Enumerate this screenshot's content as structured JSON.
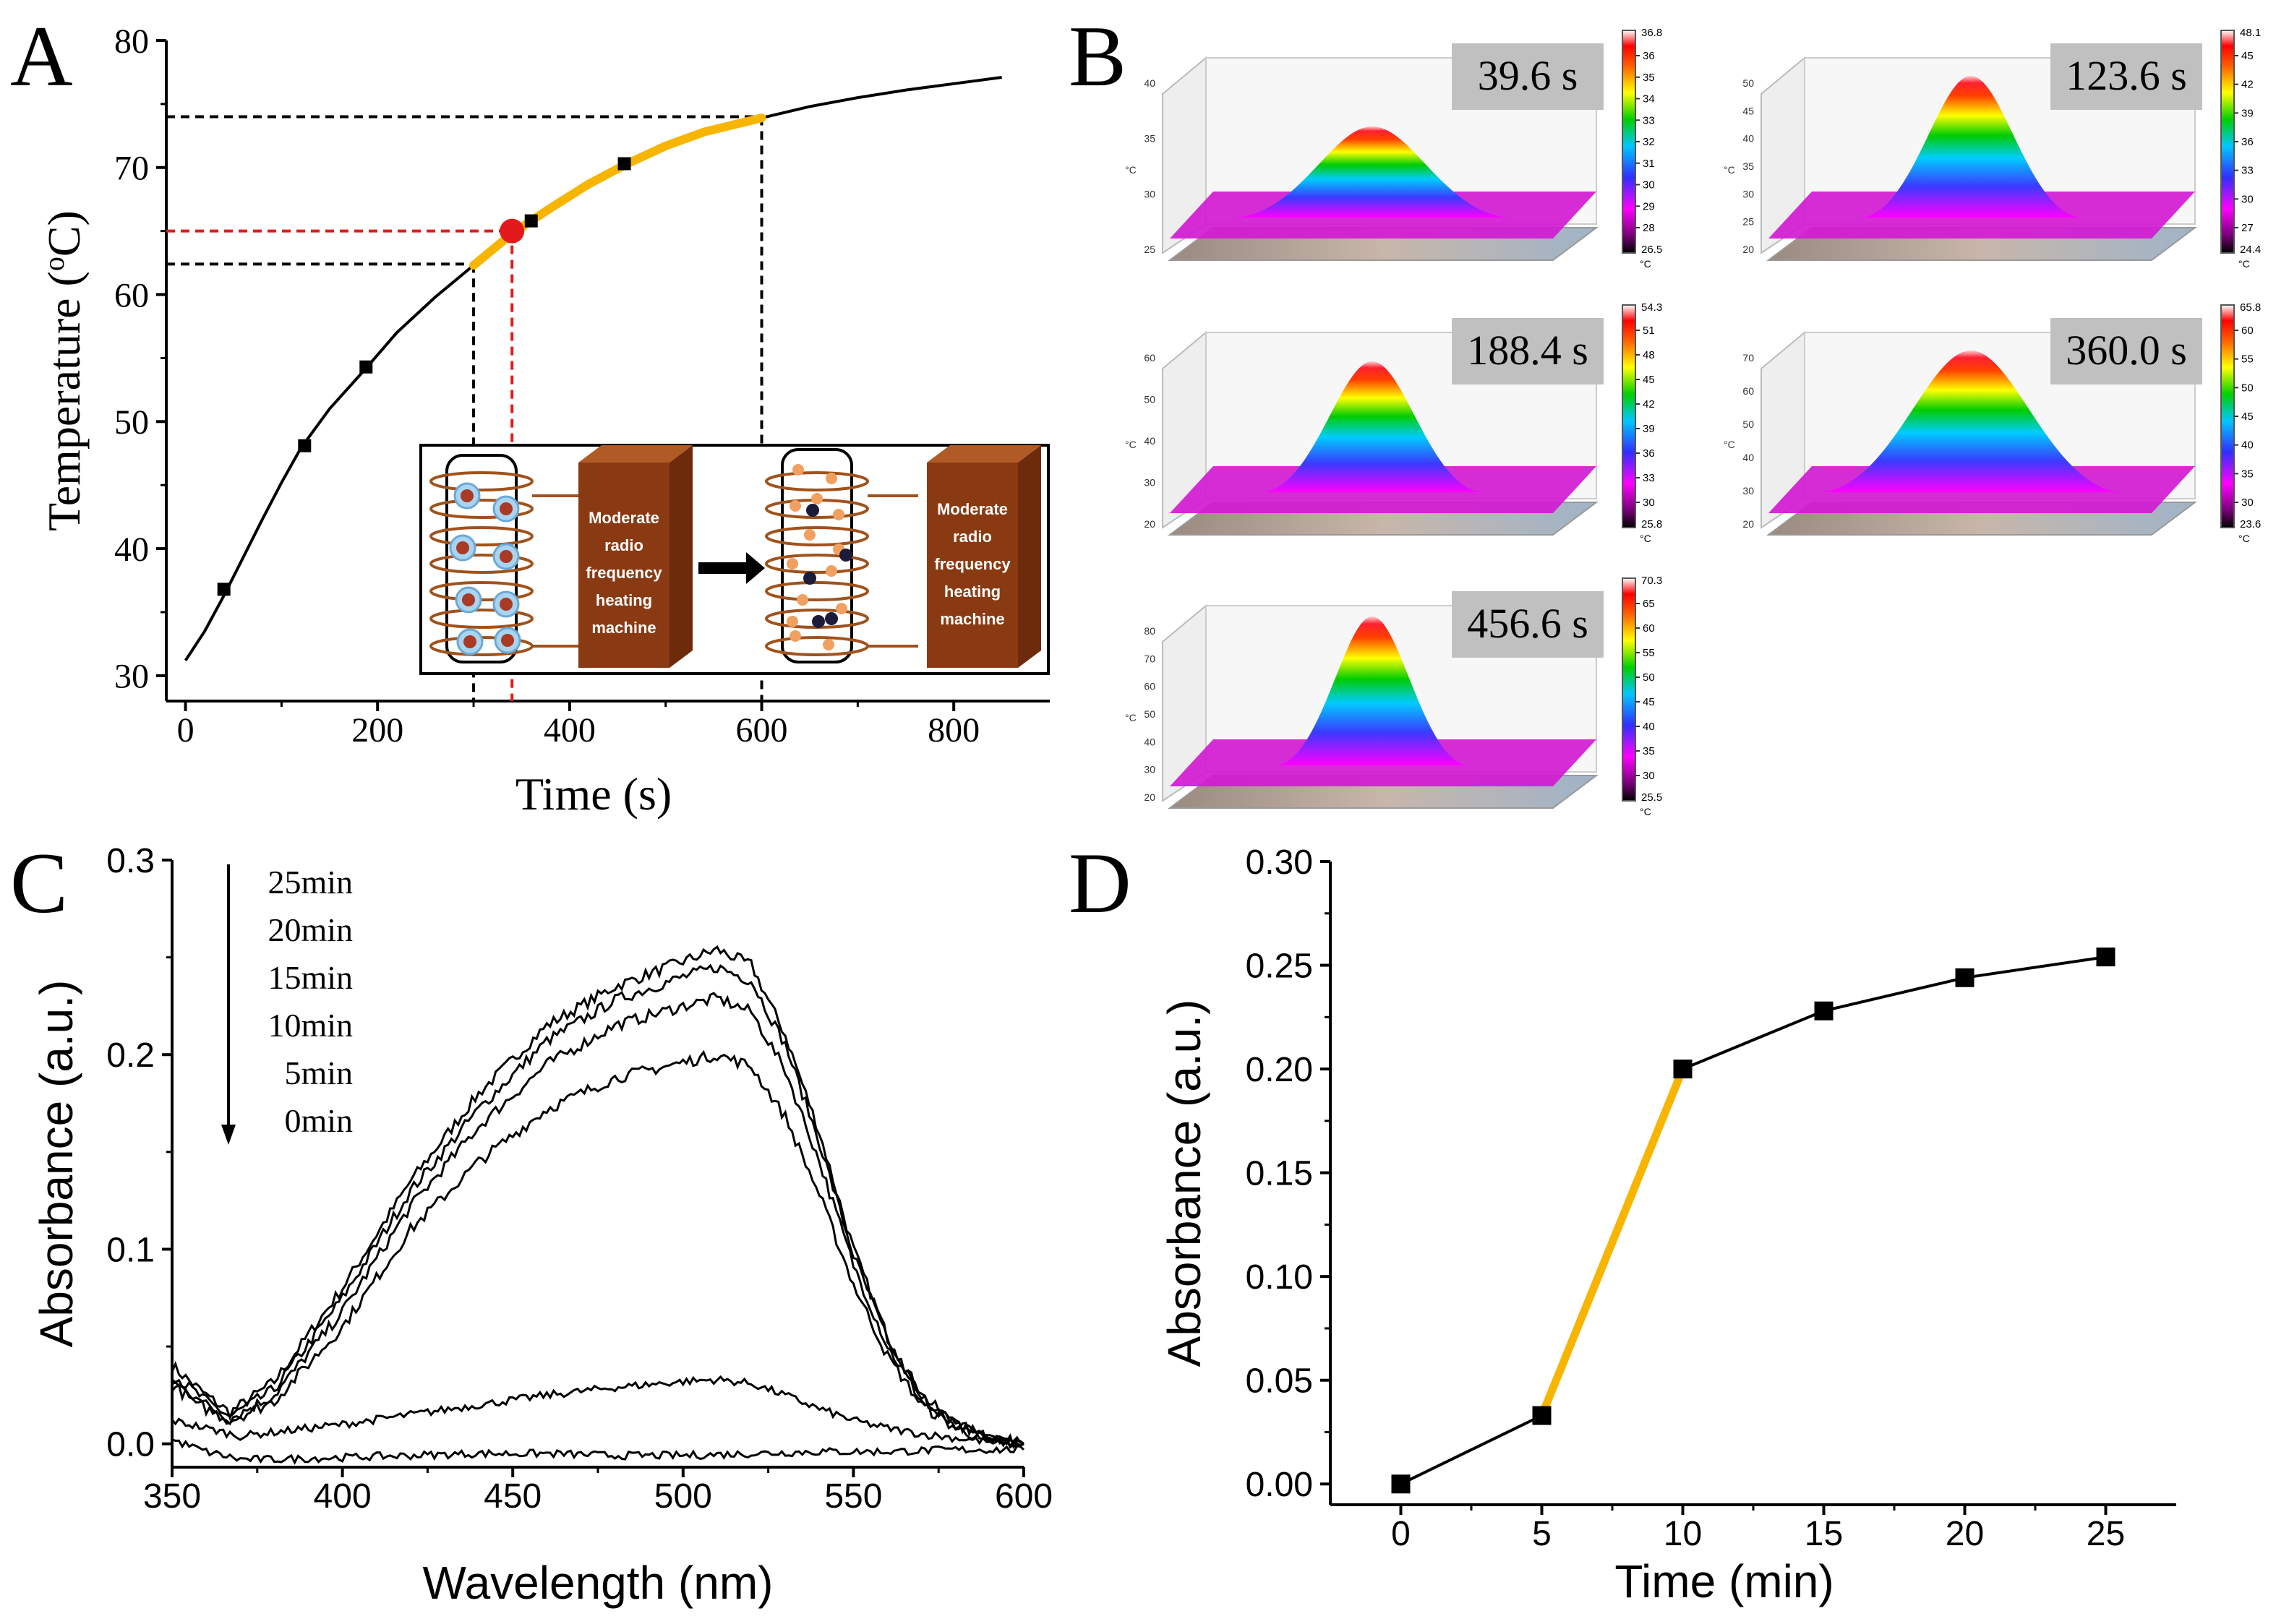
{
  "panel_labels": {
    "a": "A",
    "b": "B",
    "c": "C",
    "d": "D"
  },
  "inset": {
    "machine_label": [
      "Moderate",
      "radio",
      "frequency",
      "heating",
      "machine"
    ]
  },
  "colors": {
    "highlight": "#f7b500",
    "marker": "#e31a1c",
    "guide": "#e31a1c",
    "machine": "#8a3a12",
    "coil": "#a0521c"
  },
  "chart_data": [
    {
      "id": "A",
      "type": "line",
      "xlabel": "Time (s)",
      "ylabel_main": "Temperature (",
      "ylabel_sup": "o",
      "ylabel_end": "C)",
      "xlim": [
        -20,
        900
      ],
      "ylim": [
        28,
        80
      ],
      "xticks": [
        "0",
        "200",
        "400",
        "600",
        "800"
      ],
      "xtick_values": [
        0,
        200,
        400,
        600,
        800
      ],
      "yticks": [
        "30",
        "40",
        "50",
        "60",
        "70",
        "80"
      ],
      "ytick_values": [
        30,
        40,
        50,
        60,
        70,
        80
      ],
      "curve_x": [
        0,
        20,
        40,
        60,
        80,
        100,
        120,
        150,
        188,
        220,
        260,
        300,
        340,
        380,
        420,
        460,
        500,
        540,
        600,
        650,
        700,
        750,
        800,
        850
      ],
      "curve_y": [
        31.2,
        33.5,
        36.3,
        39.3,
        42.3,
        45.2,
        47.9,
        51.0,
        54.2,
        57.0,
        59.8,
        62.3,
        64.8,
        66.8,
        68.7,
        70.3,
        71.7,
        72.8,
        73.9,
        74.8,
        75.5,
        76.1,
        76.6,
        77.1
      ],
      "markers": {
        "x": [
          40,
          124,
          188,
          360,
          457
        ],
        "y": [
          36.8,
          48.1,
          54.3,
          65.8,
          70.3
        ]
      },
      "highlight_range": [
        300,
        600
      ],
      "guides": {
        "x_start": 300,
        "y_start": 62.4,
        "x_end": 600,
        "y_end": 74.0,
        "x_mid": 340,
        "y_mid": 65.0
      }
    },
    {
      "id": "B",
      "type": "heatmap",
      "unit": "°C",
      "maps": [
        {
          "time_label": "39.6 s",
          "scale_max": "36.8",
          "scale_min": "26.5",
          "scale_ticks": [
            "36",
            "35",
            "34",
            "33",
            "32",
            "31",
            "30",
            "29",
            "28"
          ],
          "axis_ticks": [
            "40",
            "35",
            "30",
            "25"
          ]
        },
        {
          "time_label": "123.6 s",
          "scale_max": "48.1",
          "scale_min": "24.4",
          "scale_ticks": [
            "45",
            "42",
            "39",
            "36",
            "33",
            "30",
            "27"
          ],
          "axis_ticks": [
            "50",
            "45",
            "40",
            "35",
            "30",
            "25",
            "20"
          ]
        },
        {
          "time_label": "188.4 s",
          "scale_max": "54.3",
          "scale_min": "25.8",
          "scale_ticks": [
            "51",
            "48",
            "45",
            "42",
            "39",
            "36",
            "33",
            "30"
          ],
          "axis_ticks": [
            "60",
            "50",
            "40",
            "30",
            "20"
          ]
        },
        {
          "time_label": "360.0 s",
          "scale_max": "65.8",
          "scale_min": "23.6",
          "scale_ticks": [
            "60",
            "55",
            "50",
            "45",
            "40",
            "35",
            "30"
          ],
          "axis_ticks": [
            "70",
            "60",
            "50",
            "40",
            "30",
            "20"
          ]
        },
        {
          "time_label": "456.6 s",
          "scale_max": "70.3",
          "scale_min": "25.5",
          "scale_ticks": [
            "65",
            "60",
            "55",
            "50",
            "45",
            "40",
            "35",
            "30"
          ],
          "axis_ticks": [
            "80",
            "70",
            "60",
            "50",
            "40",
            "30",
            "20"
          ]
        }
      ]
    },
    {
      "id": "C",
      "type": "line",
      "xlabel": "Wavelength (nm)",
      "ylabel": "Absorbance (a.u.)",
      "xlim": [
        350,
        600
      ],
      "ylim": [
        -0.012,
        0.3
      ],
      "xticks": [
        "350",
        "400",
        "450",
        "500",
        "550",
        "600"
      ],
      "xtick_values": [
        350,
        400,
        450,
        500,
        550,
        600
      ],
      "yticks": [
        "0.0",
        "0.1",
        "0.2",
        "0.3"
      ],
      "ytick_values": [
        0,
        0.1,
        0.2,
        0.3
      ],
      "legend": [
        "25min",
        "20min",
        "15min",
        "10min",
        "5min",
        "0min"
      ],
      "series": [
        {
          "name": "25min",
          "x": [
            350,
            360,
            367,
            380,
            400,
            420,
            440,
            460,
            480,
            500,
            510,
            520,
            530,
            540,
            550,
            560,
            570,
            580,
            590,
            600
          ],
          "y": [
            0.04,
            0.025,
            0.016,
            0.032,
            0.08,
            0.135,
            0.18,
            0.215,
            0.235,
            0.248,
            0.254,
            0.246,
            0.21,
            0.16,
            0.1,
            0.055,
            0.025,
            0.01,
            0.003,
            0.0
          ]
        },
        {
          "name": "20min",
          "x": [
            350,
            360,
            367,
            380,
            400,
            420,
            440,
            460,
            480,
            500,
            510,
            520,
            530,
            540,
            550,
            560,
            570,
            580,
            590,
            600
          ],
          "y": [
            0.036,
            0.022,
            0.014,
            0.028,
            0.075,
            0.13,
            0.172,
            0.207,
            0.228,
            0.24,
            0.245,
            0.238,
            0.205,
            0.155,
            0.097,
            0.053,
            0.024,
            0.01,
            0.003,
            0.0
          ]
        },
        {
          "name": "15min",
          "x": [
            350,
            360,
            367,
            380,
            400,
            420,
            440,
            460,
            480,
            500,
            510,
            520,
            530,
            540,
            550,
            560,
            570,
            580,
            590,
            600
          ],
          "y": [
            0.032,
            0.02,
            0.013,
            0.025,
            0.068,
            0.122,
            0.163,
            0.195,
            0.215,
            0.225,
            0.229,
            0.222,
            0.192,
            0.145,
            0.092,
            0.05,
            0.022,
            0.009,
            0.003,
            0.0
          ]
        },
        {
          "name": "10min",
          "x": [
            350,
            360,
            367,
            380,
            400,
            420,
            440,
            460,
            480,
            500,
            510,
            520,
            530,
            540,
            550,
            560,
            570,
            580,
            590,
            600
          ],
          "y": [
            0.03,
            0.018,
            0.012,
            0.022,
            0.06,
            0.11,
            0.145,
            0.172,
            0.188,
            0.196,
            0.2,
            0.194,
            0.168,
            0.128,
            0.082,
            0.045,
            0.02,
            0.008,
            0.002,
            0.0
          ]
        },
        {
          "name": "5min",
          "x": [
            350,
            360,
            370,
            380,
            400,
            420,
            440,
            460,
            480,
            500,
            510,
            520,
            530,
            540,
            550,
            560,
            570,
            580,
            590,
            600
          ],
          "y": [
            0.012,
            0.008,
            0.004,
            0.006,
            0.01,
            0.015,
            0.02,
            0.025,
            0.029,
            0.032,
            0.033,
            0.031,
            0.025,
            0.018,
            0.012,
            0.008,
            0.005,
            0.003,
            0.001,
            0.0
          ]
        },
        {
          "name": "0min",
          "x": [
            350,
            360,
            370,
            380,
            400,
            420,
            440,
            460,
            480,
            500,
            520,
            540,
            560,
            580,
            600
          ],
          "y": [
            0.002,
            -0.004,
            -0.008,
            -0.008,
            -0.007,
            -0.006,
            -0.005,
            -0.005,
            -0.006,
            -0.006,
            -0.005,
            -0.004,
            -0.004,
            -0.003,
            -0.003
          ]
        }
      ]
    },
    {
      "id": "D",
      "type": "line",
      "xlabel": "Time (min)",
      "ylabel": "Absorbance (a.u.)",
      "xlim": [
        -2.5,
        27.5
      ],
      "ylim": [
        -0.01,
        0.3
      ],
      "xticks": [
        "0",
        "5",
        "10",
        "15",
        "20",
        "25"
      ],
      "xtick_values": [
        0,
        5,
        10,
        15,
        20,
        25
      ],
      "yticks": [
        "0.00",
        "0.05",
        "0.10",
        "0.15",
        "0.20",
        "0.25",
        "0.30"
      ],
      "ytick_values": [
        0,
        0.05,
        0.1,
        0.15,
        0.2,
        0.25,
        0.3
      ],
      "x": [
        0,
        5,
        10,
        15,
        20,
        25
      ],
      "y": [
        0.0,
        0.033,
        0.2,
        0.228,
        0.244,
        0.254
      ],
      "highlight_segment": [
        5,
        10
      ]
    }
  ]
}
